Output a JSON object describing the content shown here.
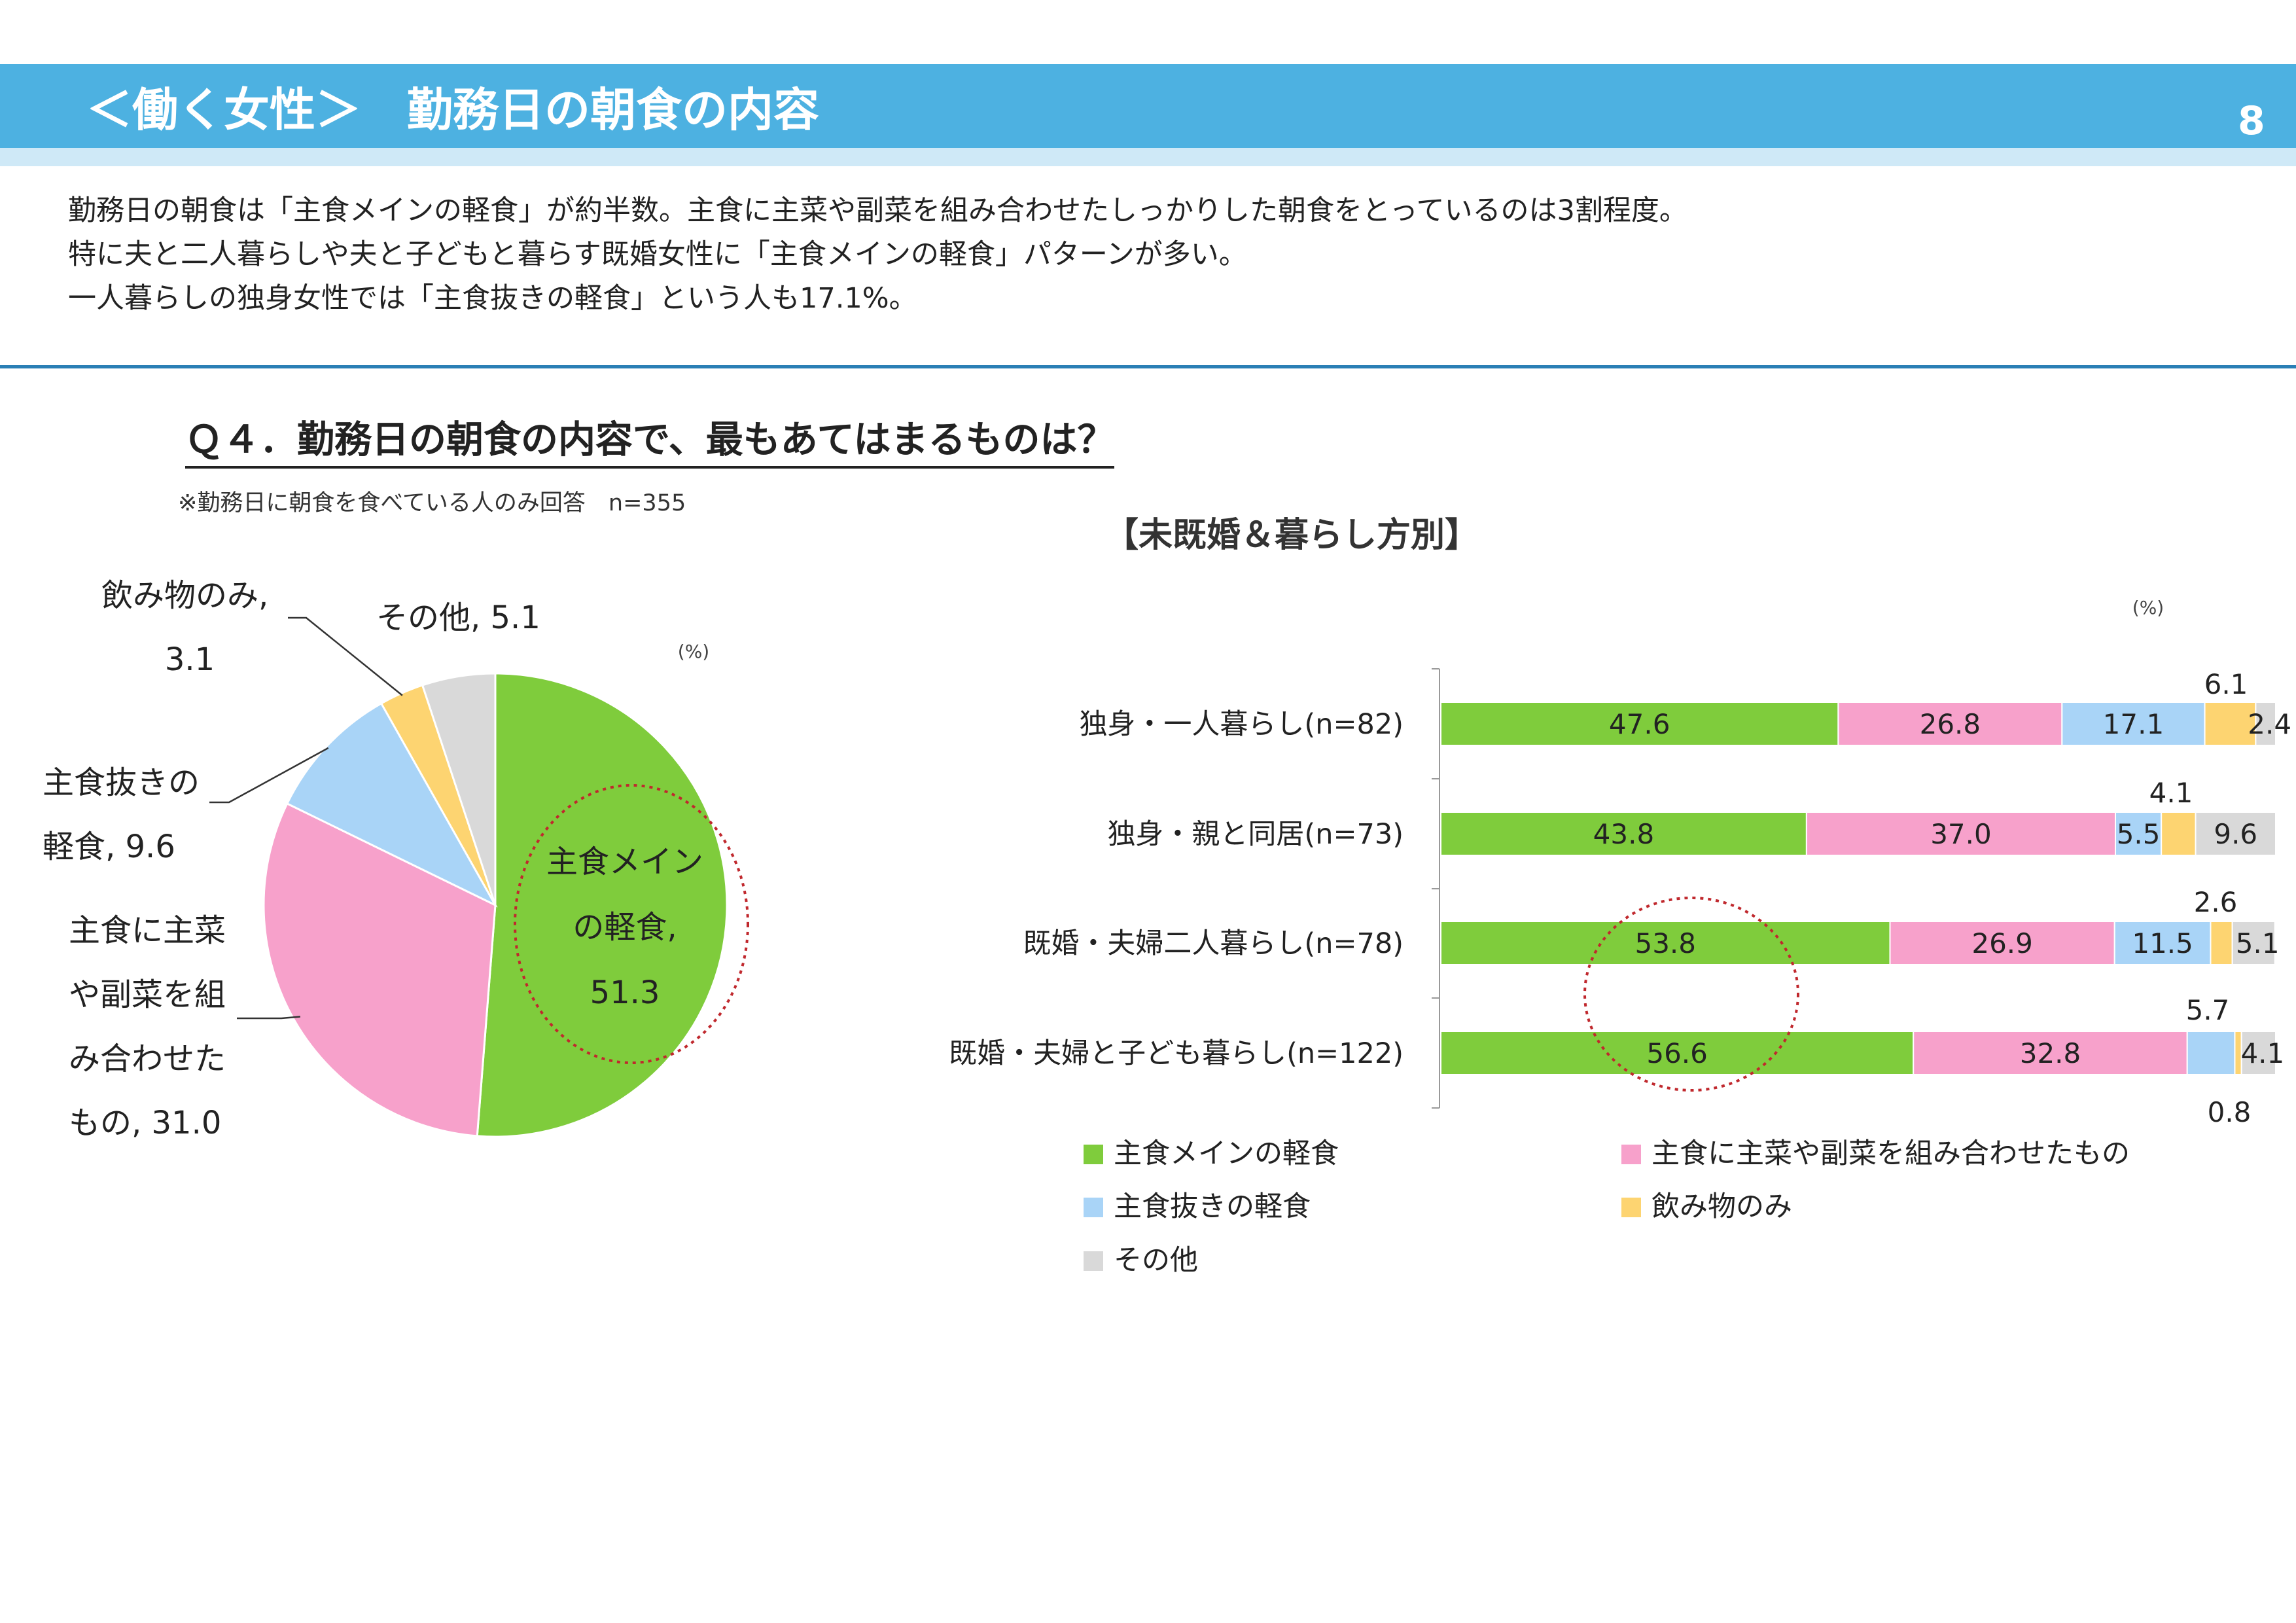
{
  "header": {
    "title": "＜働く女性＞　勤務日の朝食の内容",
    "page_number": "8"
  },
  "summary": [
    "勤務日の朝食は「主食メインの軽食」が約半数。主食に主菜や副菜を組み合わせたしっかりした朝食をとっているのは3割程度。",
    "特に夫と二人暮らしや夫と子どもと暮らす既婚女性に「主食メインの軽食」パターンが多い。",
    "一人暮らしの独身女性では「主食抜きの軽食」という人も17.1%。"
  ],
  "question": "Ｑ４．勤務日の朝食の内容で、最もあてはまるものは？",
  "note": "※勤務日に朝食を食べている人のみ回答　n=355",
  "colors": {
    "header": "#4db1e1",
    "main_light_meal": "#7fcc3c",
    "full_meal": "#f7a1cb",
    "no_staple": "#a9d4f7",
    "drink_only": "#fdd471",
    "other": "#d9d9d9",
    "highlight_circle": "#c0282d"
  },
  "chart_data": [
    {
      "type": "pie",
      "unit": "(%)",
      "slices": [
        {
          "name": "主食メインの軽食",
          "value": 51.3,
          "label_lines": [
            "主食メイン",
            "の軽食,",
            "51.3"
          ],
          "color": "#7fcc3c"
        },
        {
          "name": "主食に主菜や副菜を組み合わせたもの",
          "value": 31.0,
          "label_lines": [
            "主食に主菜",
            "や副菜を組",
            "み合わせた",
            "もの, 31.0"
          ],
          "color": "#f7a1cb"
        },
        {
          "name": "主食抜きの軽食",
          "value": 9.6,
          "label_lines": [
            "主食抜きの",
            "軽食, 9.6"
          ],
          "color": "#a9d4f7"
        },
        {
          "name": "飲み物のみ",
          "value": 3.1,
          "label_lines": [
            "飲み物のみ,",
            "3.1"
          ],
          "color": "#fdd471"
        },
        {
          "name": "その他",
          "value": 5.1,
          "label_lines": [
            "その他, 5.1"
          ],
          "color": "#d9d9d9"
        }
      ],
      "highlight": "主食メインの軽食"
    },
    {
      "type": "bar",
      "orientation": "horizontal",
      "stacked": true,
      "title": "【未既婚＆暮らし方別】",
      "unit": "(%)",
      "xlim": [
        0,
        100
      ],
      "categories": [
        "独身・一人暮らし(n=82)",
        "独身・親と同居(n=73)",
        "既婚・夫婦二人暮らし(n=78)",
        "既婚・夫婦と子ども暮らし(n=122)"
      ],
      "series": [
        {
          "name": "主食メインの軽食",
          "values": [
            47.6,
            43.8,
            53.8,
            56.6
          ],
          "color": "#7fcc3c"
        },
        {
          "name": "主食に主菜や副菜を組み合わせたもの",
          "values": [
            26.8,
            37.0,
            26.9,
            32.8
          ],
          "color": "#f7a1cb"
        },
        {
          "name": "主食抜きの軽食",
          "values": [
            17.1,
            5.5,
            11.5,
            5.7
          ],
          "color": "#a9d4f7"
        },
        {
          "name": "飲み物のみ",
          "values": [
            6.1,
            4.1,
            2.6,
            0.8
          ],
          "color": "#fdd471"
        },
        {
          "name": "その他",
          "values": [
            2.4,
            9.6,
            5.1,
            4.1
          ],
          "color": "#d9d9d9"
        }
      ],
      "highlight": {
        "series": "主食メインの軽食",
        "categories": [
          "既婚・夫婦二人暮らし(n=78)",
          "既婚・夫婦と子ども暮らし(n=122)"
        ]
      }
    }
  ]
}
